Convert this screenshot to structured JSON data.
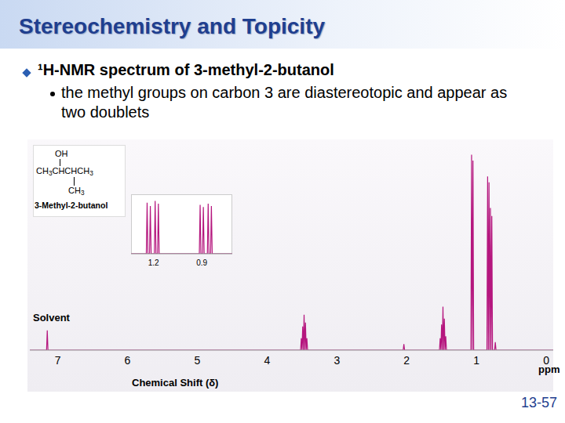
{
  "slide": {
    "title": "Stereochemistry and Topicity",
    "bullet": "¹H-NMR spectrum of 3-methyl-2-butanol",
    "sub_bullet": "the methyl groups on carbon 3 are diastereotopic and appear as two doublets",
    "page_number": "13-57"
  },
  "chart_data": [
    {
      "type": "line",
      "xlabel": "Chemical Shift (δ)",
      "annotations": [
        "Solvent",
        "ppm"
      ],
      "structure": {
        "lines": [
          "OH",
          "CH3CHCHCH3",
          "CH3"
        ],
        "name": "3-Methyl-2-butanol"
      },
      "color": "#b5167e",
      "marker": "none",
      "line_style": "solid",
      "tick_labels": "x",
      "xlim": [
        7.4,
        -0.1
      ],
      "xticks": [
        7,
        6,
        5,
        4,
        3,
        2,
        1,
        0
      ],
      "ylim": [
        0,
        100
      ],
      "x": [
        7.4,
        7.16,
        7.15,
        7.14,
        3.52,
        3.51,
        3.5,
        3.49,
        3.48,
        3.47,
        3.46,
        3.45,
        3.44,
        3.43,
        3.42,
        2.05,
        2.04,
        2.03,
        1.53,
        1.52,
        1.51,
        1.5,
        1.49,
        1.48,
        1.47,
        1.46,
        1.45,
        1.44,
        1.43,
        1.08,
        1.07,
        1.06,
        1.05,
        1.04,
        0.85,
        0.84,
        0.83,
        0.82,
        0.81,
        0.8,
        0.79,
        0.78,
        0.77,
        0.74,
        0.73,
        0.72,
        -0.1
      ],
      "values": [
        0,
        0,
        10,
        0,
        0,
        6,
        0,
        12,
        0,
        18,
        0,
        14,
        0,
        6,
        0,
        0,
        3,
        0,
        0,
        6,
        0,
        13,
        0,
        22,
        0,
        16,
        0,
        7,
        0,
        0,
        99,
        0,
        96,
        0,
        0,
        88,
        0,
        85,
        0,
        72,
        0,
        68,
        0,
        0,
        4,
        0,
        0
      ]
    },
    {
      "type": "line",
      "color": "#b5167e",
      "marker": "none",
      "line_style": "solid",
      "tick_labels": "x",
      "xlim": [
        1.34,
        0.71
      ],
      "xticks": [
        1.2,
        0.9
      ],
      "ylim": [
        0,
        100
      ],
      "x": [
        1.34,
        1.245,
        1.24,
        1.235,
        1.225,
        1.22,
        1.215,
        1.195,
        1.19,
        1.185,
        1.175,
        1.17,
        1.165,
        0.915,
        0.91,
        0.905,
        0.895,
        0.89,
        0.885,
        0.865,
        0.86,
        0.855,
        0.845,
        0.84,
        0.835,
        0.71
      ],
      "values": [
        0,
        0,
        92,
        0,
        0,
        86,
        0,
        0,
        95,
        0,
        0,
        90,
        0,
        0,
        88,
        0,
        0,
        84,
        0,
        0,
        90,
        0,
        0,
        86,
        0,
        0
      ]
    }
  ]
}
